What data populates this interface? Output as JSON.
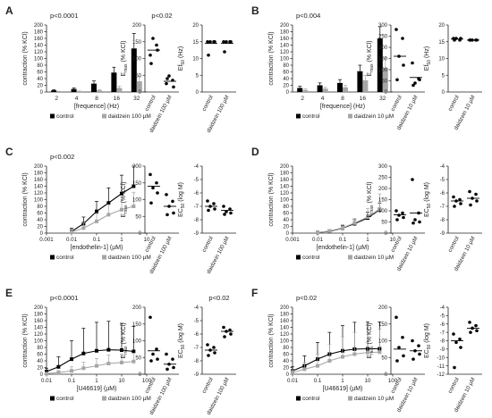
{
  "colors": {
    "control": "#000000",
    "treatment": "#a6a6a6",
    "axis": "#222222"
  },
  "panels": [
    {
      "letter": "A",
      "main": {
        "type": "bar",
        "pvalue": "p<0.0001",
        "ylabel": "contraction (% KCl)",
        "xlabel": "[frequence] (Hz)",
        "ylim": [
          0,
          200
        ],
        "yticks": [
          0,
          20,
          40,
          60,
          80,
          100,
          120,
          140,
          160,
          180,
          200
        ],
        "categories": [
          "2",
          "4",
          "8",
          "16",
          "32"
        ],
        "series": [
          {
            "name": "control",
            "key": "control",
            "values": [
              5,
              9,
              25,
              58,
              130
            ],
            "errors": [
              2,
              3,
              8,
              16,
              45
            ]
          },
          {
            "name": "daidzein 100 µM",
            "key": "treatment",
            "values": [
              1,
              2,
              5,
              12,
              32
            ],
            "errors": [
              1,
              1,
              2,
              5,
              14
            ]
          }
        ]
      },
      "emax": {
        "ylabel": "Emax (% KCl)",
        "pvalue": "p<0.02",
        "ylim": [
          0,
          200
        ],
        "yticks": [
          0,
          50,
          100,
          150,
          200
        ],
        "categories": [
          "control",
          "daidzein 100 µM"
        ],
        "points": [
          [
            110,
            140,
            160,
            125,
            85
          ],
          [
            25,
            35,
            48,
            15,
            40
          ]
        ],
        "medians": [
          125,
          32
        ]
      },
      "ef": {
        "ylabel": "Ef50 (Hz)",
        "ylim": [
          0,
          20
        ],
        "yticks": [
          0,
          5,
          10,
          15,
          20
        ],
        "categories": [
          "control",
          "daidzein 100 µM"
        ],
        "points": [
          [
            15,
            15,
            15,
            15,
            11
          ],
          [
            15,
            15,
            15,
            15,
            12
          ]
        ],
        "medians": [
          14.5,
          14.5
        ]
      }
    },
    {
      "letter": "B",
      "main": {
        "type": "bar",
        "pvalue": "p<0.004",
        "ylabel": "contraction (% KCl)",
        "xlabel": "[frequence] (Hz)",
        "ylim": [
          0,
          200
        ],
        "yticks": [
          0,
          20,
          40,
          60,
          80,
          100,
          120,
          140,
          160,
          180,
          200
        ],
        "categories": [
          "2",
          "4",
          "8",
          "16",
          "32"
        ],
        "series": [
          {
            "name": "control",
            "key": "control",
            "values": [
              12,
              20,
              27,
              62,
              160
            ],
            "errors": [
              5,
              7,
              10,
              18,
              35
            ]
          },
          {
            "name": "daidzein 10 µM",
            "key": "treatment",
            "values": [
              6,
              10,
              14,
              35,
              72
            ],
            "errors": [
              3,
              4,
              6,
              15,
              30
            ]
          }
        ]
      },
      "emax": {
        "ylabel": "Emax (% KCl)",
        "pvalue": "",
        "ylim": [
          0,
          300
        ],
        "yticks": [
          0,
          50,
          100,
          150,
          200,
          250,
          300
        ],
        "categories": [
          "control",
          "daidzein 10 µM"
        ],
        "points": [
          [
            280,
            240,
            160,
            120,
            55
          ],
          [
            130,
            60,
            40,
            55,
            30
          ]
        ],
        "medians": [
          160,
          65
        ]
      },
      "ef": {
        "ylabel": "Ef50 (Hz)",
        "ylim": [
          0,
          20
        ],
        "yticks": [
          0,
          5,
          10,
          15,
          20
        ],
        "categories": [
          "control",
          "daidzein 10 µM"
        ],
        "points": [
          [
            16,
            15.5,
            16,
            16,
            15.5
          ],
          [
            15.5,
            15.5,
            15.5,
            15.5,
            15.5
          ]
        ],
        "medians": [
          15.8,
          15.5
        ]
      }
    },
    {
      "letter": "C",
      "main": {
        "type": "line",
        "pvalue": "p<0.002",
        "ylabel": "contraction (% KCl)",
        "xlabel": "[endothelin-1] (µM)",
        "ylim": [
          0,
          200
        ],
        "yticks": [
          0,
          20,
          40,
          60,
          80,
          100,
          120,
          140,
          160,
          180,
          200
        ],
        "xlim": [
          0.001,
          10
        ],
        "xticks": [
          "0.001",
          "0.01",
          "0.1",
          "1",
          "10"
        ],
        "x": [
          0.01,
          0.03,
          0.1,
          0.3,
          1,
          3
        ],
        "series": [
          {
            "name": "control",
            "key": "control",
            "values": [
              5,
              28,
              65,
              90,
              118,
              140
            ],
            "errors": [
              10,
              20,
              30,
              45,
              55,
              60
            ]
          },
          {
            "name": "daidzein 100 µM",
            "key": "treatment",
            "values": [
              3,
              15,
              35,
              55,
              70,
              80
            ],
            "errors": [
              8,
              15,
              22,
              30,
              38,
              42
            ]
          }
        ]
      },
      "emax": {
        "ylabel": "Emax (% KCl)",
        "pvalue": "",
        "ylim": [
          0,
          200
        ],
        "yticks": [
          0,
          50,
          100,
          150,
          200
        ],
        "categories": [
          "control",
          "daidzein 100 µM"
        ],
        "points": [
          [
            175,
            150,
            135,
            120,
            90
          ],
          [
            115,
            95,
            80,
            60,
            55
          ]
        ],
        "medians": [
          140,
          80
        ]
      },
      "ef": {
        "ylabel": "EC50 (log M)",
        "pvalue": "",
        "ylim": [
          -9,
          -4
        ],
        "yticks": [
          -9,
          -8,
          -7,
          -6,
          -5,
          -4
        ],
        "categories": [
          "control",
          "daidzein 100 µM"
        ],
        "points": [
          [
            -6.6,
            -6.8,
            -7.0,
            -7.2,
            -7.3
          ],
          [
            -7.0,
            -7.2,
            -7.4,
            -7.5,
            -7.6
          ]
        ],
        "medians": [
          -7.0,
          -7.3
        ]
      }
    },
    {
      "letter": "D",
      "main": {
        "type": "line",
        "pvalue": "",
        "ylabel": "contraction (% KCl)",
        "xlabel": "[endothelin-1] (µM)",
        "ylim": [
          0,
          200
        ],
        "yticks": [
          0,
          20,
          40,
          60,
          80,
          100,
          120,
          140,
          160,
          180,
          200
        ],
        "xlim": [
          0.001,
          10
        ],
        "xticks": [
          "0.001",
          "0.01",
          "0.1",
          "1",
          "10"
        ],
        "x": [
          0.01,
          0.03,
          0.1,
          0.3,
          1,
          3
        ],
        "series": [
          {
            "name": "control",
            "key": "control",
            "values": [
              2,
              5,
              15,
              28,
              45,
              70
            ],
            "errors": [
              3,
              5,
              8,
              12,
              18,
              20
            ]
          },
          {
            "name": "daidzein 10 µM",
            "key": "treatment",
            "values": [
              2,
              6,
              16,
              30,
              48,
              72
            ],
            "errors": [
              3,
              5,
              9,
              14,
              25,
              45
            ]
          }
        ]
      },
      "emax": {
        "ylabel": "Emax (% KCl)",
        "pvalue": "",
        "ylim": [
          0,
          300
        ],
        "yticks": [
          0,
          50,
          100,
          150,
          200,
          250,
          300
        ],
        "categories": [
          "control",
          "daidzein 10 µM"
        ],
        "points": [
          [
            100,
            90,
            80,
            70,
            60
          ],
          [
            240,
            90,
            60,
            50,
            45
          ]
        ],
        "medians": [
          82,
          90
        ]
      },
      "ef": {
        "ylabel": "EC50 (log M)",
        "pvalue": "",
        "ylim": [
          -9,
          -4
        ],
        "yticks": [
          -9,
          -8,
          -7,
          -6,
          -5,
          -4
        ],
        "categories": [
          "control",
          "daidzein 10 µM"
        ],
        "points": [
          [
            -6.3,
            -6.5,
            -6.6,
            -6.8,
            -7.0
          ],
          [
            -5.9,
            -6.1,
            -6.4,
            -6.6,
            -6.9
          ]
        ],
        "medians": [
          -6.6,
          -6.4
        ]
      }
    },
    {
      "letter": "E",
      "main": {
        "type": "line",
        "pvalue": "p<0.0001",
        "ylabel": "contraction (% KCl)",
        "xlabel": "[U46619] (µM)",
        "ylim": [
          0,
          200
        ],
        "yticks": [
          0,
          20,
          40,
          60,
          80,
          100,
          120,
          140,
          160,
          180,
          200
        ],
        "xlim": [
          0.01,
          100
        ],
        "xticks": [
          "0.01",
          "0.1",
          "1",
          "10",
          "100"
        ],
        "x": [
          0.01,
          0.03,
          0.1,
          0.3,
          1,
          3,
          10,
          30
        ],
        "series": [
          {
            "name": "control",
            "key": "control",
            "values": [
              8,
              22,
              45,
              62,
              70,
              73,
              72,
              68
            ],
            "errors": [
              10,
              30,
              55,
              75,
              85,
              85,
              80,
              75
            ]
          },
          {
            "name": "daidzein 100 µM",
            "key": "treatment",
            "values": [
              2,
              5,
              10,
              18,
              25,
              32,
              35,
              38
            ],
            "errors": [
              3,
              6,
              12,
              18,
              22,
              25,
              25,
              25
            ]
          }
        ]
      },
      "emax": {
        "ylabel": "Emax (% KCl)",
        "pvalue": "",
        "ylim": [
          0,
          200
        ],
        "yticks": [
          0,
          50,
          100,
          150,
          200
        ],
        "categories": [
          "control",
          "daidzein 100 µM"
        ],
        "points": [
          [
            170,
            75,
            60,
            45,
            40
          ],
          [
            60,
            45,
            30,
            20,
            15
          ]
        ],
        "medians": [
          70,
          30
        ]
      },
      "ef": {
        "ylabel": "EC50 (log M)",
        "pvalue": "p<0.02",
        "ylim": [
          -9,
          -4
        ],
        "yticks": [
          -9,
          -8,
          -7,
          -6,
          -5,
          -4
        ],
        "categories": [
          "control",
          "daidzein 100 µM"
        ],
        "points": [
          [
            -6.8,
            -7.0,
            -7.2,
            -7.4,
            -7.6
          ],
          [
            -5.5,
            -5.7,
            -5.8,
            -6.0,
            -6.2
          ]
        ],
        "medians": [
          -7.2,
          -5.8
        ]
      }
    },
    {
      "letter": "F",
      "main": {
        "type": "line",
        "pvalue": "p<0.02",
        "ylabel": "contraction (% KCl)",
        "xlabel": "[U46619] (µM)",
        "ylim": [
          0,
          200
        ],
        "yticks": [
          0,
          20,
          40,
          60,
          80,
          100,
          120,
          140,
          160,
          180,
          200
        ],
        "xlim": [
          0.01,
          100
        ],
        "xticks": [
          "0.01",
          "0.1",
          "1",
          "10",
          "100"
        ],
        "x": [
          0.01,
          0.03,
          0.1,
          0.3,
          1,
          3,
          10,
          30
        ],
        "series": [
          {
            "name": "control",
            "key": "control",
            "values": [
              10,
              25,
              45,
              60,
              70,
              75,
              76,
              76
            ],
            "errors": [
              12,
              30,
              50,
              65,
              75,
              80,
              80,
              80
            ]
          },
          {
            "name": "daidzein 10 µM",
            "key": "treatment",
            "values": [
              5,
              15,
              25,
              40,
              52,
              60,
              65,
              66
            ],
            "errors": [
              8,
              20,
              35,
              50,
              60,
              65,
              68,
              68
            ]
          }
        ]
      },
      "emax": {
        "ylabel": "Emax (% KCl)",
        "pvalue": "",
        "ylim": [
          0,
          200
        ],
        "yticks": [
          0,
          50,
          100,
          150,
          200
        ],
        "categories": [
          "control",
          "daidzein 10 µM"
        ],
        "points": [
          [
            170,
            110,
            80,
            55,
            40
          ],
          [
            100,
            85,
            70,
            60,
            45
          ]
        ],
        "medians": [
          75,
          70
        ]
      },
      "ef": {
        "ylabel": "EC50 (log M)",
        "pvalue": "",
        "ylim": [
          -12,
          -4
        ],
        "yticks": [
          -12,
          -11,
          -10,
          -9,
          -8,
          -7,
          -6,
          -5,
          -4
        ],
        "categories": [
          "control",
          "daidzein 10 µM"
        ],
        "points": [
          [
            -7.2,
            -7.8,
            -8.2,
            -8.8,
            -11.2
          ],
          [
            -5.8,
            -6.2,
            -6.5,
            -6.8,
            -7.0
          ]
        ],
        "medians": [
          -8.0,
          -6.5
        ]
      }
    }
  ]
}
